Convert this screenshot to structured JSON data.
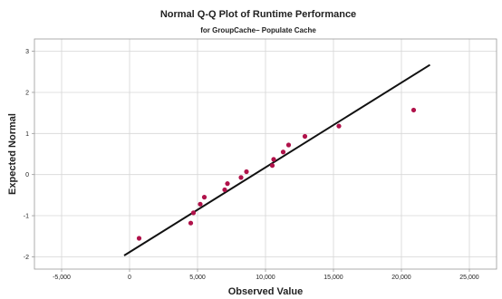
{
  "chart_data": {
    "type": "scatter",
    "title": "Normal Q-Q Plot of Runtime Performance",
    "subtitle": "for GroupCache– Populate Cache",
    "xlabel": "Observed Value",
    "ylabel": "Expected Normal",
    "xlim": [
      -7000,
      27000
    ],
    "ylim": [
      -2.3,
      3.3
    ],
    "xticks": [
      -5000,
      0,
      5000,
      10000,
      15000,
      20000,
      25000
    ],
    "xtick_labels": [
      "-5,000",
      "0",
      "5,000",
      "10,000",
      "15,000",
      "20,000",
      "25,000"
    ],
    "yticks": [
      -2,
      -1,
      0,
      1,
      2,
      3
    ],
    "ytick_labels": [
      "-2",
      "-1",
      "0",
      "1",
      "2",
      "3"
    ],
    "grid": true,
    "point_color": "#b0124a",
    "line_color": "#111111",
    "points": [
      {
        "x": 700,
        "y": -1.55
      },
      {
        "x": 4500,
        "y": -1.18
      },
      {
        "x": 4700,
        "y": -0.93
      },
      {
        "x": 5200,
        "y": -0.72
      },
      {
        "x": 5500,
        "y": -0.55
      },
      {
        "x": 7000,
        "y": -0.37
      },
      {
        "x": 7200,
        "y": -0.22
      },
      {
        "x": 8200,
        "y": -0.07
      },
      {
        "x": 8600,
        "y": 0.07
      },
      {
        "x": 10500,
        "y": 0.22
      },
      {
        "x": 10600,
        "y": 0.37
      },
      {
        "x": 11300,
        "y": 0.55
      },
      {
        "x": 11700,
        "y": 0.72
      },
      {
        "x": 12900,
        "y": 0.93
      },
      {
        "x": 15400,
        "y": 1.18
      },
      {
        "x": 20900,
        "y": 1.57
      }
    ],
    "reference_line": {
      "x": [
        -400,
        22100
      ],
      "y": [
        -1.97,
        2.67
      ]
    }
  }
}
